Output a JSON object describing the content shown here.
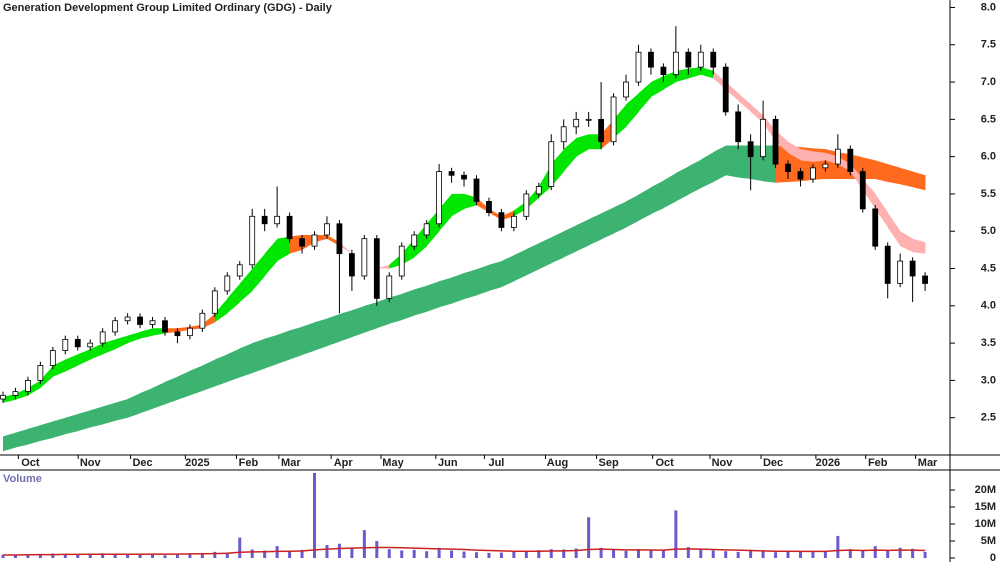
{
  "chart_data": [
    {
      "type": "candlestick",
      "title": "Generation Development Group Limited Ordinary (GDG) - Daily",
      "xlim": [
        -0.24,
        76.0
      ],
      "xticks": [
        {
          "value": 2.2,
          "label": "Oct"
        },
        {
          "value": 7,
          "label": "Nov"
        },
        {
          "value": 11.2,
          "label": "Dec"
        },
        {
          "value": 15.6,
          "label": "2025"
        },
        {
          "value": 19.7,
          "label": "Feb"
        },
        {
          "value": 23.1,
          "label": "Mar"
        },
        {
          "value": 27.3,
          "label": "Apr"
        },
        {
          "value": 31.3,
          "label": "May"
        },
        {
          "value": 35.7,
          "label": "Jun"
        },
        {
          "value": 39.6,
          "label": "Jul"
        },
        {
          "value": 44.5,
          "label": "Aug"
        },
        {
          "value": 48.6,
          "label": "Sep"
        },
        {
          "value": 53.1,
          "label": "Oct"
        },
        {
          "value": 57.7,
          "label": "Nov"
        },
        {
          "value": 61.8,
          "label": "Dec"
        },
        {
          "value": 66.2,
          "label": "2026"
        },
        {
          "value": 70.2,
          "label": "Feb"
        },
        {
          "value": 74.2,
          "label": "Mar"
        }
      ],
      "ylim": [
        2.0,
        8.1
      ],
      "yticks": [
        2.5,
        {
          "value": 3,
          "label": "3.0"
        },
        3.5,
        {
          "value": 4,
          "label": "4.0"
        },
        4.5,
        {
          "value": 5,
          "label": "5.0"
        },
        5.5,
        {
          "value": 6,
          "label": "6.0"
        },
        6.5,
        {
          "value": 7,
          "label": "7.0"
        },
        7.5,
        {
          "value": 8,
          "label": "8.0"
        }
      ],
      "up_color": "#ffffff",
      "down_color": "#000000",
      "wick_color": "#000000",
      "ohlc": {
        "open": [
          2.75,
          2.8,
          2.85,
          3.0,
          3.2,
          3.4,
          3.55,
          3.45,
          3.5,
          3.65,
          3.8,
          3.85,
          3.75,
          3.8,
          3.65,
          3.6,
          3.7,
          3.9,
          4.2,
          4.4,
          4.55,
          5.2,
          5.1,
          5.2,
          4.9,
          4.8,
          4.95,
          5.1,
          4.7,
          4.4,
          4.9,
          4.1,
          4.4,
          4.8,
          4.95,
          5.1,
          5.8,
          5.75,
          5.7,
          5.4,
          5.25,
          5.05,
          5.2,
          5.5,
          5.6,
          6.2,
          6.4,
          6.5,
          6.5,
          6.2,
          6.8,
          7.0,
          7.4,
          7.2,
          7.1,
          7.4,
          7.2,
          7.4,
          7.2,
          6.6,
          6.2,
          6.0,
          6.5,
          5.9,
          5.8,
          5.7,
          5.85,
          5.9,
          6.1,
          5.8,
          5.3,
          4.8,
          4.3,
          4.6,
          4.4
        ],
        "high": [
          2.85,
          2.9,
          3.05,
          3.25,
          3.45,
          3.6,
          3.6,
          3.55,
          3.7,
          3.85,
          3.9,
          3.9,
          3.85,
          3.85,
          3.7,
          3.75,
          3.95,
          4.25,
          4.45,
          4.6,
          5.3,
          5.3,
          5.6,
          5.25,
          4.95,
          5.0,
          5.2,
          5.15,
          4.75,
          4.95,
          4.95,
          4.45,
          4.85,
          5.0,
          5.15,
          5.9,
          5.85,
          5.8,
          5.75,
          5.45,
          5.3,
          5.25,
          5.55,
          5.65,
          6.3,
          6.5,
          6.6,
          6.6,
          7.0,
          6.85,
          7.1,
          7.5,
          7.45,
          7.25,
          7.75,
          7.45,
          7.5,
          7.45,
          7.25,
          6.7,
          6.3,
          6.75,
          6.55,
          5.95,
          5.85,
          5.9,
          5.95,
          6.3,
          6.15,
          5.85,
          5.35,
          4.85,
          4.7,
          4.65,
          4.45
        ],
        "low": [
          2.7,
          2.75,
          2.8,
          2.95,
          3.15,
          3.35,
          3.4,
          3.4,
          3.45,
          3.6,
          3.75,
          3.7,
          3.7,
          3.6,
          3.5,
          3.55,
          3.65,
          3.85,
          4.15,
          4.35,
          4.5,
          5.0,
          5.05,
          4.85,
          4.7,
          4.75,
          4.9,
          3.9,
          4.2,
          4.35,
          4.0,
          4.05,
          4.35,
          4.75,
          4.9,
          5.05,
          5.65,
          5.6,
          5.35,
          5.2,
          5.0,
          5.0,
          5.15,
          5.45,
          5.55,
          6.1,
          6.3,
          6.4,
          6.1,
          6.15,
          6.75,
          6.95,
          7.1,
          7.0,
          7.05,
          7.1,
          7.15,
          7.1,
          6.55,
          6.1,
          5.55,
          5.95,
          5.85,
          5.7,
          5.6,
          5.65,
          5.8,
          5.85,
          5.75,
          5.25,
          4.75,
          4.1,
          4.25,
          4.05,
          4.2
        ],
        "close": [
          2.8,
          2.85,
          3.0,
          3.2,
          3.4,
          3.55,
          3.45,
          3.5,
          3.65,
          3.8,
          3.85,
          3.75,
          3.8,
          3.65,
          3.6,
          3.7,
          3.9,
          4.2,
          4.4,
          4.55,
          5.2,
          5.1,
          5.2,
          4.9,
          4.8,
          4.95,
          5.1,
          4.7,
          4.4,
          4.9,
          4.1,
          4.4,
          4.8,
          4.95,
          5.1,
          5.8,
          5.75,
          5.7,
          5.4,
          5.25,
          5.05,
          5.2,
          5.5,
          5.6,
          6.2,
          6.4,
          6.5,
          6.5,
          6.2,
          6.8,
          7.0,
          7.4,
          7.2,
          7.1,
          7.4,
          7.2,
          7.4,
          7.2,
          6.6,
          6.2,
          6.0,
          6.5,
          5.9,
          5.8,
          5.7,
          5.85,
          5.9,
          6.1,
          5.8,
          5.3,
          4.8,
          4.3,
          4.6,
          4.4,
          4.3
        ]
      },
      "bands": [
        {
          "upper": [
            2.25,
            2.3,
            2.35,
            2.4,
            2.45,
            2.5,
            2.55,
            2.6,
            2.65,
            2.7,
            2.75,
            2.83,
            2.9,
            2.98,
            3.05,
            3.13,
            3.2,
            3.28,
            3.35,
            3.43,
            3.5,
            3.56,
            3.61,
            3.67,
            3.72,
            3.78,
            3.83,
            3.89,
            3.94,
            4.0,
            4.05,
            4.11,
            4.16,
            4.22,
            4.27,
            4.33,
            4.38,
            4.44,
            4.49,
            4.55,
            4.6,
            4.68,
            4.76,
            4.84,
            4.92,
            5.0,
            5.08,
            5.16,
            5.24,
            5.32,
            5.4,
            5.49,
            5.59,
            5.68,
            5.78,
            5.87,
            5.96,
            6.06,
            6.15,
            6.15,
            6.15,
            6.15,
            6.15,
            6.14,
            6.13,
            6.11,
            6.1,
            6.06,
            6.03,
            5.99,
            5.95,
            5.9,
            5.85,
            5.8,
            5.75
          ],
          "lower": [
            2.05,
            2.1,
            2.14,
            2.19,
            2.23,
            2.28,
            2.32,
            2.37,
            2.41,
            2.46,
            2.5,
            2.56,
            2.62,
            2.68,
            2.74,
            2.8,
            2.86,
            2.92,
            2.98,
            3.04,
            3.1,
            3.16,
            3.22,
            3.28,
            3.34,
            3.4,
            3.46,
            3.52,
            3.58,
            3.64,
            3.7,
            3.76,
            3.81,
            3.87,
            3.92,
            3.98,
            4.03,
            4.09,
            4.14,
            4.2,
            4.25,
            4.33,
            4.41,
            4.49,
            4.57,
            4.65,
            4.73,
            4.81,
            4.89,
            4.97,
            5.05,
            5.14,
            5.23,
            5.31,
            5.4,
            5.49,
            5.58,
            5.66,
            5.75,
            5.72,
            5.7,
            5.67,
            5.65,
            5.66,
            5.67,
            5.69,
            5.7,
            5.7,
            5.7,
            5.7,
            5.7,
            5.66,
            5.63,
            5.59,
            5.55
          ],
          "colors": [
            "#3cb371",
            "#3cb371",
            "#3cb371",
            "#3cb371",
            "#3cb371",
            "#3cb371",
            "#3cb371",
            "#3cb371",
            "#3cb371",
            "#3cb371",
            "#3cb371",
            "#3cb371",
            "#3cb371",
            "#3cb371",
            "#3cb371",
            "#3cb371",
            "#3cb371",
            "#3cb371",
            "#3cb371",
            "#3cb371",
            "#3cb371",
            "#3cb371",
            "#3cb371",
            "#3cb371",
            "#3cb371",
            "#3cb371",
            "#3cb371",
            "#3cb371",
            "#3cb371",
            "#3cb371",
            "#3cb371",
            "#3cb371",
            "#3cb371",
            "#3cb371",
            "#3cb371",
            "#3cb371",
            "#3cb371",
            "#3cb371",
            "#3cb371",
            "#3cb371",
            "#3cb371",
            "#3cb371",
            "#3cb371",
            "#3cb371",
            "#3cb371",
            "#3cb371",
            "#3cb371",
            "#3cb371",
            "#3cb371",
            "#3cb371",
            "#3cb371",
            "#3cb371",
            "#3cb371",
            "#3cb371",
            "#3cb371",
            "#3cb371",
            "#3cb371",
            "#3cb371",
            "#3cb371",
            "#3cb371",
            "#3cb371",
            "#3cb371",
            "#ff6a1f",
            "#ff6a1f",
            "#ff6a1f",
            "#ff6a1f",
            "#ff6a1f",
            "#ff6a1f",
            "#ff6a1f",
            "#ff6a1f",
            "#ff6a1f",
            "#ff6a1f",
            "#ff6a1f",
            "#ff6a1f",
            "#ff6a1f"
          ]
        },
        {
          "upper": [
            2.78,
            2.82,
            2.9,
            3.0,
            3.2,
            3.28,
            3.35,
            3.42,
            3.5,
            3.55,
            3.6,
            3.65,
            3.7,
            3.7,
            3.7,
            3.72,
            3.75,
            3.9,
            4.1,
            4.3,
            4.5,
            4.7,
            4.9,
            4.93,
            4.95,
            4.95,
            4.95,
            4.85,
            4.7,
            4.6,
            4.5,
            4.55,
            4.7,
            4.9,
            5.1,
            5.3,
            5.5,
            5.5,
            5.45,
            5.3,
            5.2,
            5.28,
            5.4,
            5.6,
            5.9,
            6.1,
            6.25,
            6.3,
            6.3,
            6.5,
            6.7,
            6.85,
            7.0,
            7.08,
            7.15,
            7.18,
            7.2,
            7.15,
            7.0,
            6.85,
            6.7,
            6.55,
            6.35,
            6.2,
            6.1,
            6.07,
            6.05,
            6.0,
            5.9,
            5.7,
            5.5,
            5.25,
            5.0,
            4.9,
            4.85
          ],
          "lower": [
            2.7,
            2.74,
            2.8,
            2.9,
            3.05,
            3.12,
            3.2,
            3.28,
            3.35,
            3.42,
            3.5,
            3.56,
            3.6,
            3.63,
            3.65,
            3.68,
            3.7,
            3.78,
            3.9,
            4.05,
            4.2,
            4.4,
            4.6,
            4.7,
            4.75,
            4.85,
            4.9,
            4.8,
            4.7,
            4.6,
            4.5,
            4.5,
            4.55,
            4.65,
            4.8,
            5.0,
            5.2,
            5.3,
            5.35,
            5.25,
            5.15,
            5.2,
            5.3,
            5.45,
            5.6,
            5.8,
            6.0,
            6.1,
            6.1,
            6.25,
            6.4,
            6.6,
            6.8,
            6.9,
            7.0,
            7.05,
            7.1,
            7.05,
            6.9,
            6.75,
            6.6,
            6.45,
            6.2,
            6.05,
            5.95,
            5.93,
            5.95,
            5.9,
            5.8,
            5.55,
            5.3,
            5.05,
            4.8,
            4.72,
            4.7
          ],
          "colors": [
            "#00e600",
            "#00e600",
            "#00e600",
            "#00e600",
            "#00e600",
            "#00e600",
            "#00e600",
            "#00e600",
            "#00e600",
            "#00e600",
            "#00e600",
            "#00e600",
            "#00e600",
            "#ff6a1f",
            "#ff6a1f",
            "#ff6a1f",
            "#ff6a1f",
            "#00e600",
            "#00e600",
            "#00e600",
            "#00e600",
            "#00e600",
            "#00e600",
            "#ff6a1f",
            "#ff6a1f",
            "#ff6a1f",
            "#ff6a1f",
            "#ffb0b0",
            "#ffb0b0",
            "#ffb0b0",
            "#ffb0b0",
            "#00e600",
            "#00e600",
            "#00e600",
            "#00e600",
            "#00e600",
            "#00e600",
            "#00e600",
            "#ff6a1f",
            "#ff6a1f",
            "#ff6a1f",
            "#00e600",
            "#00e600",
            "#00e600",
            "#00e600",
            "#00e600",
            "#00e600",
            "#00e600",
            "#ff6a1f",
            "#00e600",
            "#00e600",
            "#00e600",
            "#00e600",
            "#00e600",
            "#00e600",
            "#00e600",
            "#00e600",
            "#ffb0b0",
            "#ffb0b0",
            "#ffb0b0",
            "#ffb0b0",
            "#ffb0b0",
            "#ffb0b0",
            "#ffb0b0",
            "#ffb0b0",
            "#ffb0b0",
            "#ffb0b0",
            "#ffb0b0",
            "#ffb0b0",
            "#ffb0b0",
            "#ffb0b0",
            "#ffb0b0",
            "#ffb0b0",
            "#ffb0b0",
            "#ffb0b0"
          ]
        }
      ]
    },
    {
      "type": "bar",
      "title": "Volume",
      "color": "#6a5acd",
      "ylim": [
        0,
        25300000
      ],
      "yticks": [
        0,
        {
          "value": 5000000,
          "label": "5M"
        },
        {
          "value": 10000000,
          "label": "10M"
        },
        {
          "value": 15000000,
          "label": "15M"
        },
        {
          "value": 20000000,
          "label": "20M"
        }
      ],
      "values": [
        900000,
        800000,
        1000000,
        1100000,
        1300000,
        900000,
        1000000,
        1200000,
        1400000,
        1000000,
        1100000,
        900000,
        1200000,
        800000,
        1000000,
        1300000,
        1500000,
        1800000,
        1600000,
        6000000,
        2500000,
        2200000,
        3500000,
        2000000,
        2400000,
        25000000,
        3800000,
        4200000,
        3000000,
        8200000,
        5000000,
        2600000,
        2200000,
        2400000,
        2000000,
        3000000,
        2200000,
        1900000,
        1700000,
        1500000,
        1600000,
        1800000,
        2100000,
        2300000,
        2600000,
        2500000,
        2800000,
        12000000,
        3000000,
        2400000,
        2100000,
        2600000,
        2300000,
        2200000,
        14000000,
        3200000,
        2500000,
        2200000,
        2000000,
        1800000,
        2400000,
        2000000,
        1700000,
        1900000,
        1800000,
        2100000,
        2000000,
        6500000,
        2600000,
        2200000,
        3500000,
        2400000,
        3000000,
        2700000,
        1800000
      ],
      "line": {
        "color": "#cc2222",
        "values": [
          900000,
          900000,
          950000,
          1000000,
          1000000,
          1050000,
          1050000,
          1100000,
          1100000,
          1100000,
          1100000,
          1100000,
          1150000,
          1150000,
          1150000,
          1200000,
          1250000,
          1300000,
          1400000,
          1700000,
          1800000,
          1850000,
          1950000,
          2000000,
          2050000,
          2400000,
          2600000,
          2800000,
          2900000,
          3000000,
          3100000,
          3100000,
          3000000,
          2900000,
          2800000,
          2700000,
          2600000,
          2500000,
          2300000,
          2200000,
          2100000,
          2000000,
          2000000,
          2000000,
          2050000,
          2100000,
          2200000,
          2500000,
          2600000,
          2500000,
          2400000,
          2400000,
          2350000,
          2300000,
          2600000,
          2700000,
          2600000,
          2500000,
          2400000,
          2300000,
          2200000,
          2100000,
          2000000,
          2000000,
          1950000,
          1950000,
          1950000,
          2200000,
          2300000,
          2200000,
          2300000,
          2250000,
          2300000,
          2300000,
          2200000
        ]
      }
    }
  ]
}
